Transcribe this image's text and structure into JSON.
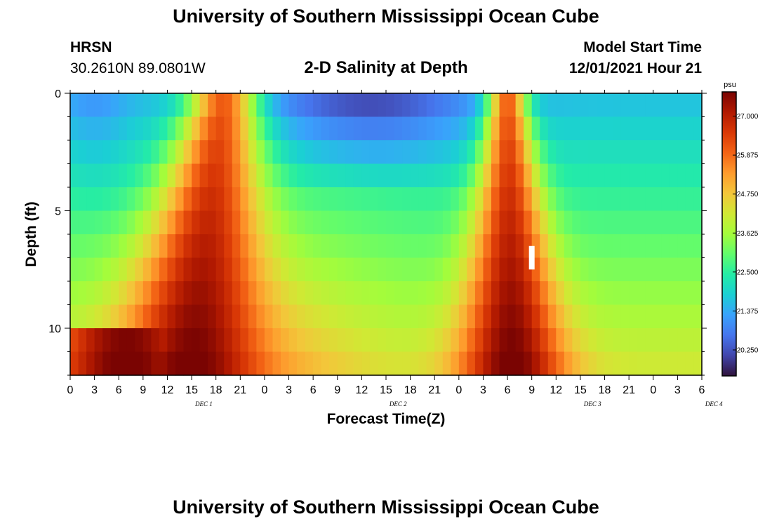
{
  "header": {
    "title": "University of Southern Mississippi Ocean Cube",
    "station_name": "HRSN",
    "station_coords": "30.2610N  89.0801W",
    "plot_title": "2-D Salinity at Depth",
    "start_label": "Model Start Time",
    "start_value": "12/01/2021 Hour 21"
  },
  "footer": {
    "title": "University of Southern Mississippi Ocean Cube"
  },
  "chart_data": {
    "type": "heatmap",
    "title": "2-D Salinity at Depth",
    "xlabel": "Forecast Time(Z)",
    "ylabel": "Depth (ft)",
    "x_tick_labels": [
      "0",
      "3",
      "6",
      "9",
      "12",
      "15",
      "18",
      "21",
      "0",
      "3",
      "6",
      "9",
      "12",
      "15",
      "18",
      "21",
      "0",
      "3",
      "6",
      "9",
      "12",
      "15",
      "18",
      "21",
      "0",
      "3",
      "6"
    ],
    "day_labels": [
      {
        "label": "DEC 1",
        "x_hours": 16.5
      },
      {
        "label": "DEC 2",
        "x_hours": 40.5
      },
      {
        "label": "DEC 3",
        "x_hours": 64.5
      },
      {
        "label": "DEC 4",
        "x_hours": 79.5
      }
    ],
    "x_range_hours": [
      0,
      78
    ],
    "y_ticks": [
      0,
      5,
      10
    ],
    "ylim": [
      0,
      12
    ],
    "colorbar": {
      "unit": "psu",
      "min": 19.5,
      "max": 27.7,
      "tick_labels": [
        "27.000",
        "25.875",
        "24.750",
        "23.625",
        "22.500",
        "21.375",
        "20.250"
      ]
    },
    "colors": [
      "#30123b",
      "#4145ab",
      "#4675ed",
      "#39a2fc",
      "#1bcfd4",
      "#24eca6",
      "#61fc6c",
      "#a4fc3b",
      "#d1e834",
      "#f3c63a",
      "#fe9b2d",
      "#f36315",
      "#d93806",
      "#b11901",
      "#7a0402"
    ],
    "summary": "Salinity (psu) vs depth (0-12 ft) and forecast hour. High-salinity (~26.5-27.5 psu) intrusions centered near Dec 1 18Z-Dec 2 00Z and Dec 3 06Z (deeper layers saltier); fresher water (~19.5-21 psu) near the surface around Dec 2 12Z and after Dec 3 18Z."
  }
}
